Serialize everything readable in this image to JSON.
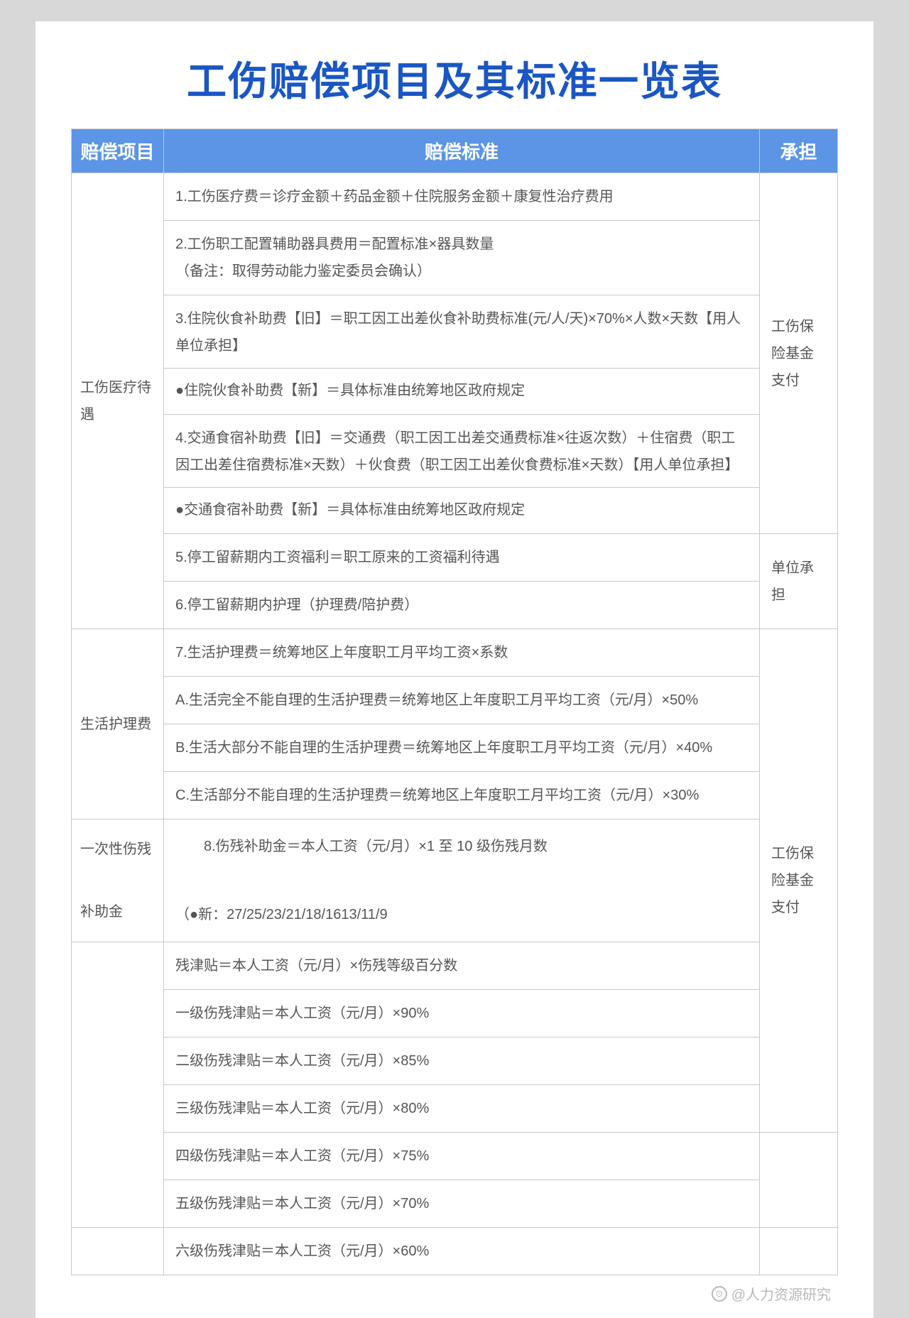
{
  "title": "工伤赔偿项目及其标准一览表",
  "columns": {
    "project": "赔偿项目",
    "standard": "赔偿标准",
    "bearer": "承担"
  },
  "sections": {
    "s1": {
      "project": "工伤医疗待遇",
      "bear1": "工伤保险基金支付",
      "bear2": "单位承担",
      "r1": "1.工伤医疗费＝诊疗金额＋药品金额＋住院服务金额＋康复性治疗费用",
      "r2a": "2.工伤职工配置辅助器具费用＝配置标准×器具数量",
      "r2b": "（备注：取得劳动能力鉴定委员会确认）",
      "r3": "3.住院伙食补助费【旧】＝职工因工出差伙食补助费标准(元/人/天)×70%×人数×天数【用人单位承担】",
      "r3n": "●住院伙食补助费【新】＝具体标准由统筹地区政府规定",
      "r4": "4.交通食宿补助费【旧】＝交通费（职工因工出差交通费标准×往返次数）＋住宿费（职工因工出差住宿费标准×天数）＋伙食费（职工因工出差伙食费标准×天数）【用人单位承担】",
      "r4n": "●交通食宿补助费【新】＝具体标准由统筹地区政府规定",
      "r5": "5.停工留薪期内工资福利＝职工原来的工资福利待遇",
      "r6": "6.停工留薪期内护理（护理费/陪护费）"
    },
    "s2": {
      "project": "生活护理费",
      "r7": "7.生活护理费＝统筹地区上年度职工月平均工资×系数",
      "rA": "A.生活完全不能自理的生活护理费＝统筹地区上年度职工月平均工资（元/月）×50%",
      "rB": "B.生活大部分不能自理的生活护理费＝统筹地区上年度职工月平均工资（元/月）×40%",
      "rC": "C.生活部分不能自理的生活护理费＝统筹地区上年度职工月平均工资（元/月）×30%"
    },
    "s3": {
      "project": "一次性伤残补助金",
      "r8a": "　　8.伤残补助金＝本人工资（元/月）×1 至 10 级伤残月数",
      "r8b": "（●新：27/25/23/21/18/1613/11/9"
    },
    "s4": {
      "bear": "工伤保险基金支付",
      "r0": "残津贴＝本人工资（元/月）×伤残等级百分数",
      "r1": "一级伤残津贴＝本人工资（元/月）×90%",
      "r2": "二级伤残津贴＝本人工资（元/月）×85%",
      "r3": "三级伤残津贴＝本人工资（元/月）×80%",
      "r4": "四级伤残津贴＝本人工资（元/月）×75%",
      "r5": "五级伤残津贴＝本人工资（元/月）×70%",
      "r6": "六级伤残津贴＝本人工资（元/月）×60%"
    }
  },
  "watermark": "@人力资源研究",
  "colors": {
    "title": "#1a56c4",
    "header_bg": "#5c94e6",
    "border": "#c9c9c9",
    "text": "#555555",
    "page_bg": "#ffffff",
    "body_bg": "#d8d8d8"
  }
}
